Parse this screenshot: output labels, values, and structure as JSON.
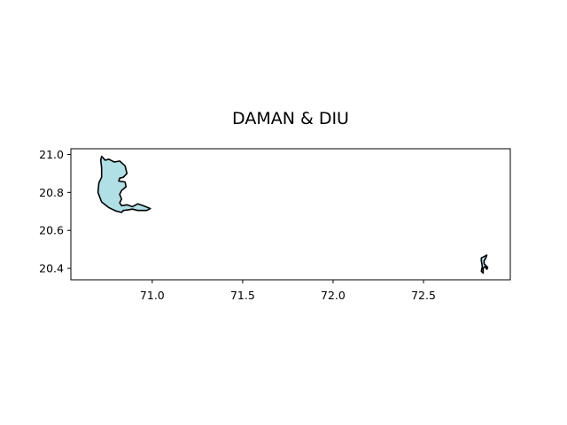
{
  "title": "DAMAN & DIU",
  "chart_data": {
    "type": "map",
    "title": "DAMAN & DIU",
    "xlabel": "",
    "ylabel": "",
    "xlim": [
      70.55,
      72.98
    ],
    "ylim": [
      20.34,
      21.03
    ],
    "grid": false,
    "x_ticks": [
      71.0,
      71.5,
      72.0,
      72.5
    ],
    "x_tick_labels": [
      "71.0",
      "71.5",
      "72.0",
      "72.5"
    ],
    "y_ticks": [
      20.4,
      20.6,
      20.8,
      21.0
    ],
    "y_tick_labels": [
      "20.4",
      "20.6",
      "20.8",
      "21.0"
    ],
    "regions": [
      {
        "fill": "#b0dfe5",
        "stroke": "#000000",
        "coords": [
          [
            70.72,
            20.99
          ],
          [
            70.74,
            20.97
          ],
          [
            70.76,
            20.975
          ],
          [
            70.79,
            20.96
          ],
          [
            70.82,
            20.965
          ],
          [
            70.85,
            20.94
          ],
          [
            70.86,
            20.9
          ],
          [
            70.84,
            20.88
          ],
          [
            70.82,
            20.875
          ],
          [
            70.815,
            20.86
          ],
          [
            70.85,
            20.855
          ],
          [
            70.855,
            20.83
          ],
          [
            70.83,
            20.81
          ],
          [
            70.82,
            20.79
          ],
          [
            70.83,
            20.765
          ],
          [
            70.82,
            20.745
          ],
          [
            70.83,
            20.73
          ],
          [
            70.86,
            20.735
          ],
          [
            70.89,
            20.725
          ],
          [
            70.92,
            20.74
          ],
          [
            70.95,
            20.73
          ],
          [
            70.99,
            20.715
          ],
          [
            70.97,
            20.705
          ],
          [
            70.92,
            20.705
          ],
          [
            70.89,
            20.712
          ],
          [
            70.865,
            20.708
          ],
          [
            70.84,
            20.705
          ],
          [
            70.83,
            20.695
          ],
          [
            70.8,
            20.702
          ],
          [
            70.76,
            20.72
          ],
          [
            70.72,
            20.75
          ],
          [
            70.7,
            20.8
          ],
          [
            70.705,
            20.85
          ],
          [
            70.72,
            20.88
          ],
          [
            70.72,
            20.93
          ],
          [
            70.715,
            20.97
          ]
        ]
      },
      {
        "fill": "#b0dfe5",
        "stroke": "#000000",
        "coords": [
          [
            72.83,
            20.46
          ],
          [
            72.85,
            20.47
          ],
          [
            72.845,
            20.455
          ],
          [
            72.835,
            20.44
          ],
          [
            72.835,
            20.425
          ],
          [
            72.845,
            20.415
          ],
          [
            72.855,
            20.405
          ],
          [
            72.85,
            20.395
          ],
          [
            72.84,
            20.41
          ],
          [
            72.83,
            20.4
          ],
          [
            72.83,
            20.375
          ],
          [
            72.82,
            20.385
          ],
          [
            72.825,
            20.41
          ],
          [
            72.82,
            20.44
          ],
          [
            72.82,
            20.455
          ]
        ]
      }
    ]
  }
}
